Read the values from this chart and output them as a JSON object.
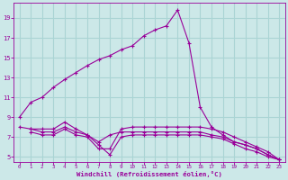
{
  "background_color": "#cce8e8",
  "grid_color": "#aad4d4",
  "line_color": "#990099",
  "xlabel": "Windchill (Refroidissement éolien,°C)",
  "xlabel_color": "#990099",
  "tick_color": "#990099",
  "ylim": [
    4.5,
    20.5
  ],
  "xlim": [
    -0.5,
    23.5
  ],
  "yticks": [
    5,
    7,
    9,
    11,
    13,
    15,
    17,
    19
  ],
  "xticks": [
    0,
    1,
    2,
    3,
    4,
    5,
    6,
    7,
    8,
    9,
    10,
    11,
    12,
    13,
    14,
    15,
    16,
    17,
    18,
    19,
    20,
    21,
    22,
    23
  ],
  "line1_x": [
    0,
    1,
    2,
    3,
    4,
    5,
    6,
    7,
    8,
    9,
    10,
    11,
    12,
    13,
    14,
    15,
    16,
    17,
    18,
    19,
    20,
    21,
    22,
    23
  ],
  "line1_y": [
    9.0,
    10.5,
    11.0,
    12.0,
    12.8,
    13.5,
    14.2,
    14.8,
    15.2,
    15.8,
    16.2,
    17.2,
    17.8,
    18.2,
    19.8,
    16.5,
    10.0,
    8.0,
    7.2,
    6.5,
    6.2,
    5.8,
    5.2,
    4.7
  ],
  "line2_x": [
    0,
    1,
    2,
    3,
    4,
    5,
    6,
    7,
    8,
    9,
    10,
    11,
    12,
    13,
    14,
    15,
    16,
    17,
    18,
    19,
    20,
    21,
    22,
    23
  ],
  "line2_y": [
    8.0,
    7.8,
    7.8,
    7.8,
    8.5,
    7.8,
    7.2,
    6.5,
    7.2,
    7.5,
    7.5,
    7.5,
    7.5,
    7.5,
    7.5,
    7.5,
    7.5,
    7.2,
    7.0,
    6.5,
    6.2,
    5.8,
    5.2,
    4.7
  ],
  "line3_x": [
    1,
    2,
    3,
    4,
    5,
    6,
    7,
    8,
    9,
    10,
    11,
    12,
    13,
    14,
    15,
    16,
    17,
    18,
    19,
    20,
    21,
    22,
    23
  ],
  "line3_y": [
    7.8,
    7.5,
    7.5,
    8.0,
    7.5,
    7.2,
    6.2,
    5.2,
    7.0,
    7.2,
    7.2,
    7.2,
    7.2,
    7.2,
    7.2,
    7.2,
    7.0,
    6.8,
    6.3,
    5.8,
    5.5,
    5.0,
    4.7
  ],
  "line4_x": [
    1,
    2,
    3,
    4,
    5,
    6,
    7,
    8,
    9,
    10,
    11,
    12,
    13,
    14,
    15,
    16,
    17,
    18,
    19,
    20,
    21,
    22,
    23
  ],
  "line4_y": [
    7.5,
    7.2,
    7.2,
    7.8,
    7.2,
    7.0,
    5.8,
    5.8,
    7.8,
    8.0,
    8.0,
    8.0,
    8.0,
    8.0,
    8.0,
    8.0,
    7.8,
    7.5,
    7.0,
    6.5,
    6.0,
    5.5,
    4.7
  ]
}
